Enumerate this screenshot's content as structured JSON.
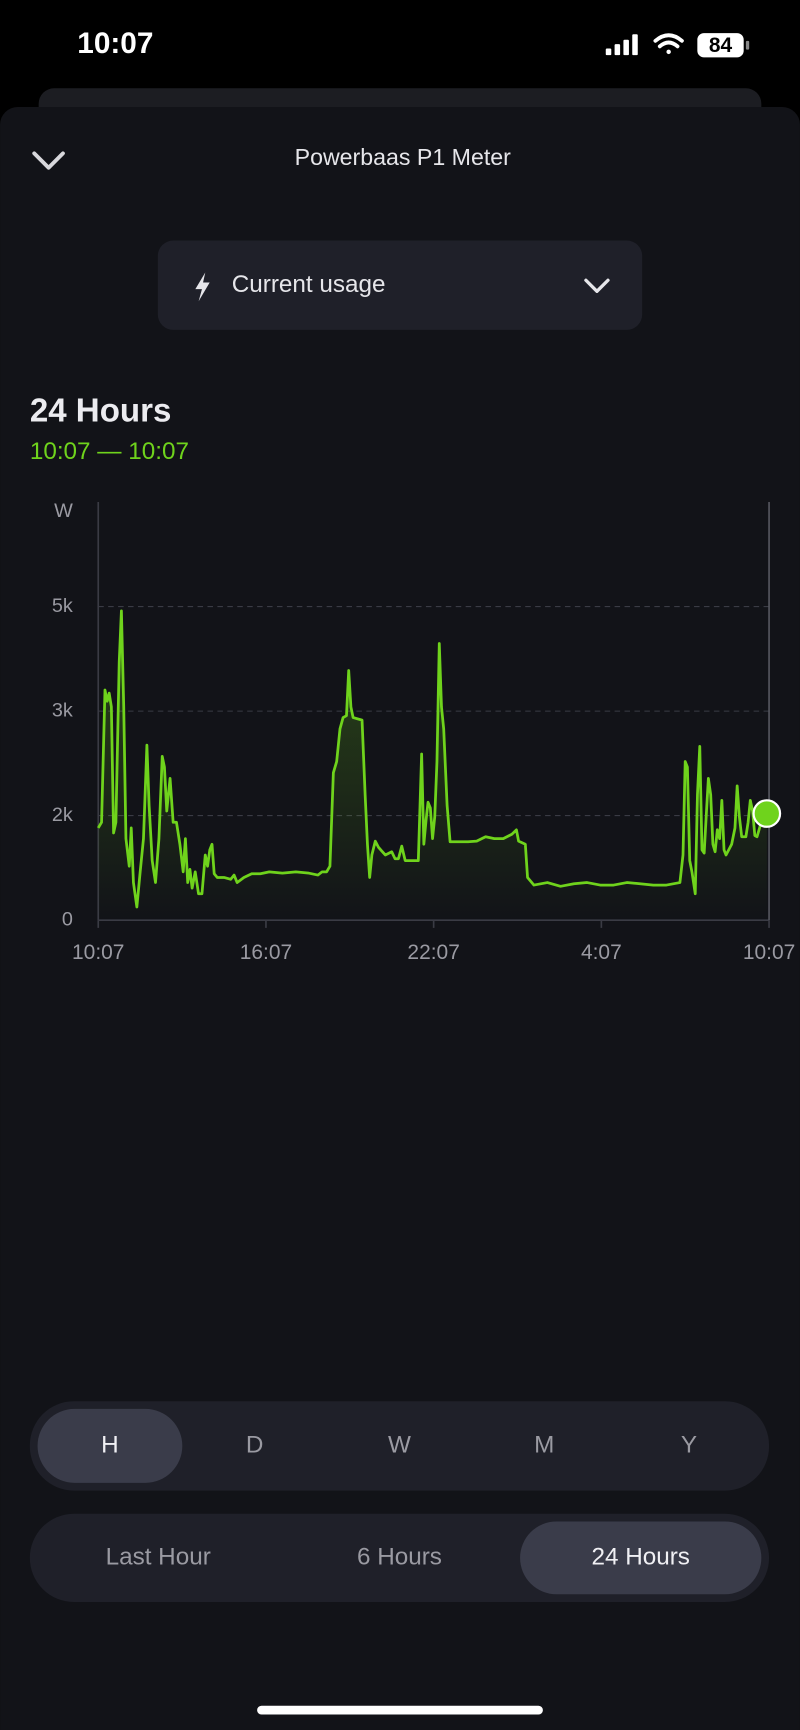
{
  "status_bar": {
    "time": "10:07",
    "battery": "84"
  },
  "header": {
    "title": "Powerbaas P1 Meter"
  },
  "selector": {
    "label": "Current usage"
  },
  "chart_data": {
    "type": "line",
    "title": "24 Hours",
    "subtitle": "10:07 — 10:07",
    "ylabel": "W",
    "x": [
      0,
      0.12,
      0.24,
      0.32,
      0.39,
      0.47,
      0.55,
      0.63,
      0.75,
      0.83,
      0.91,
      0.99,
      1.11,
      1.18,
      1.26,
      1.38,
      1.5,
      1.62,
      1.74,
      1.82,
      1.93,
      2.05,
      2.17,
      2.29,
      2.37,
      2.45,
      2.57,
      2.68,
      2.8,
      2.92,
      3.04,
      3.12,
      3.2,
      3.28,
      3.36,
      3.47,
      3.59,
      3.71,
      3.83,
      3.91,
      3.99,
      4.07,
      4.15,
      4.26,
      4.5,
      4.74,
      4.86,
      4.97,
      5.21,
      5.49,
      5.8,
      6.12,
      6.59,
      7.07,
      7.54,
      7.86,
      8.01,
      8.17,
      8.29,
      8.41,
      8.53,
      8.65,
      8.76,
      8.88,
      8.96,
      9.04,
      9.12,
      9.44,
      9.55,
      9.63,
      9.71,
      9.79,
      9.91,
      10.03,
      10.27,
      10.5,
      10.62,
      10.74,
      10.86,
      10.98,
      11.21,
      11.45,
      11.57,
      11.65,
      11.73,
      11.8,
      11.88,
      11.96,
      12.04,
      12.12,
      12.2,
      12.28,
      12.36,
      12.48,
      12.59,
      12.91,
      13.23,
      13.54,
      13.86,
      14.17,
      14.49,
      14.8,
      14.96,
      15.04,
      15.28,
      15.36,
      15.59,
      16.07,
      16.54,
      17.02,
      17.49,
      17.96,
      18.44,
      18.91,
      19.38,
      19.86,
      20.33,
      20.81,
      20.92,
      21,
      21.08,
      21.16,
      21.24,
      21.36,
      21.44,
      21.52,
      21.6,
      21.68,
      21.75,
      21.83,
      21.91,
      21.99,
      22.07,
      22.15,
      22.23,
      22.31,
      22.39,
      22.46,
      22.66,
      22.78,
      22.86,
      22.94,
      23.02,
      23.17,
      23.25,
      23.33,
      23.41,
      23.49,
      23.57,
      23.73,
      23.88,
      23.92
    ],
    "series": [
      {
        "color": "#6fd31c",
        "values": [
          1470,
          1560,
          3670,
          3490,
          3620,
          3400,
          1390,
          1560,
          4110,
          4930,
          3400,
          1300,
          860,
          1470,
          600,
          210,
          770,
          1300,
          2790,
          1830,
          950,
          600,
          1300,
          2610,
          2440,
          1740,
          2260,
          1560,
          1560,
          1210,
          770,
          1300,
          600,
          810,
          510,
          770,
          420,
          420,
          1040,
          860,
          1120,
          1210,
          740,
          680,
          680,
          650,
          720,
          600,
          680,
          740,
          740,
          770,
          750,
          770,
          750,
          720,
          770,
          770,
          860,
          2350,
          2530,
          3050,
          3230,
          3260,
          3980,
          3400,
          3230,
          3190,
          2000,
          1210,
          680,
          1040,
          1260,
          1160,
          1040,
          1090,
          980,
          980,
          1180,
          950,
          950,
          950,
          2650,
          1210,
          1610,
          1880,
          1790,
          1300,
          1650,
          2530,
          4410,
          3400,
          3050,
          1830,
          1250,
          1250,
          1250,
          1260,
          1330,
          1300,
          1300,
          1370,
          1440,
          1260,
          1210,
          680,
          560,
          600,
          540,
          580,
          600,
          560,
          560,
          600,
          580,
          560,
          560,
          600,
          1040,
          2530,
          2440,
          950,
          770,
          420,
          2000,
          2770,
          1120,
          1070,
          1650,
          2260,
          2000,
          1210,
          1090,
          1440,
          1300,
          1910,
          1120,
          1040,
          1210,
          1470,
          2140,
          1650,
          1330,
          1330,
          1560,
          1910,
          1740,
          1350,
          1330,
          1580,
          1680,
          1700
        ]
      }
    ],
    "xlim": [
      0,
      24
    ],
    "xticks": [
      {
        "value": 0,
        "label": "10:07"
      },
      {
        "value": 6,
        "label": "16:07"
      },
      {
        "value": 12,
        "label": "22:07"
      },
      {
        "value": 18,
        "label": "4:07"
      },
      {
        "value": 24,
        "label": "10:07"
      }
    ],
    "ylim": [
      0,
      6667
    ],
    "yticks": [
      0,
      {
        "value": 1667,
        "label": "2k"
      },
      {
        "value": 3333,
        "label": "3k"
      },
      {
        "value": 5000,
        "label": "5k"
      }
    ],
    "grid": true
  },
  "period_tabs": {
    "items": [
      "H",
      "D",
      "W",
      "M",
      "Y"
    ],
    "selected": 0
  },
  "range_tabs": {
    "items": [
      "Last Hour",
      "6 Hours",
      "24 Hours"
    ],
    "selected": 2
  }
}
